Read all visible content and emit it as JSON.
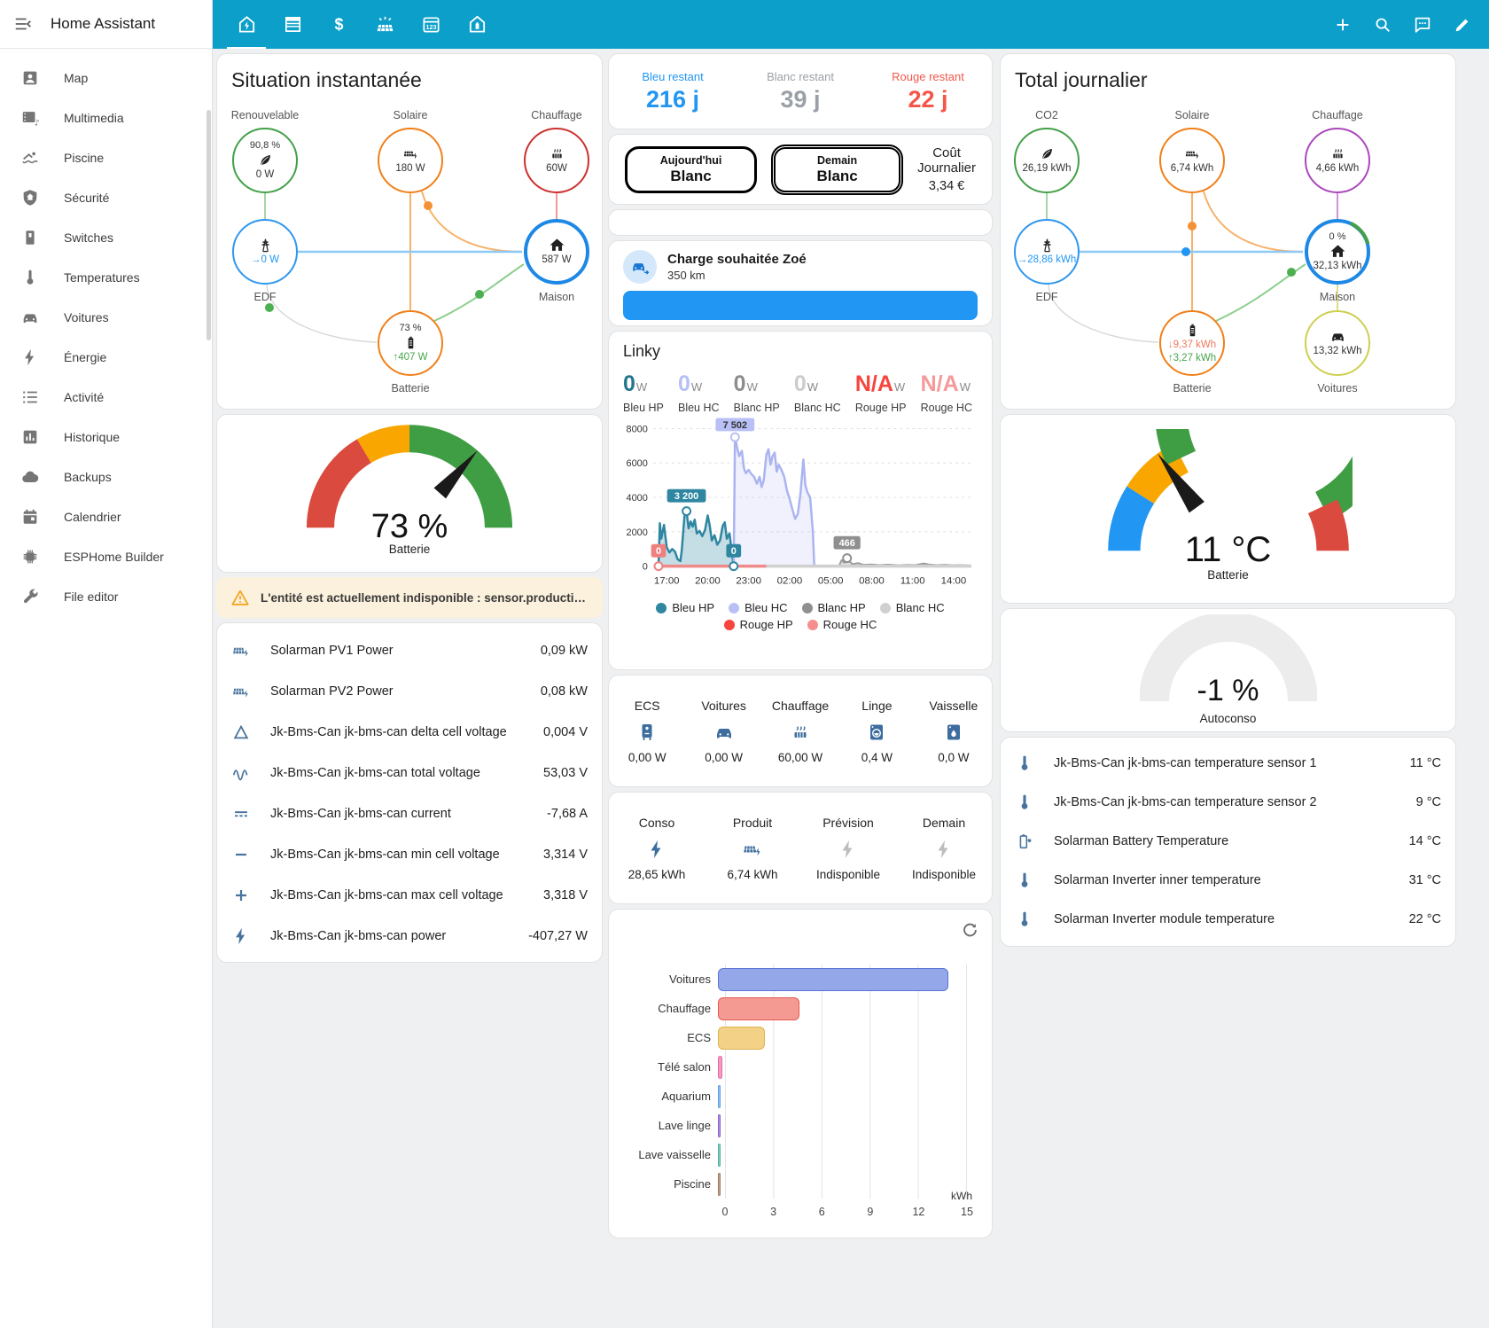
{
  "app": {
    "title": "Home Assistant"
  },
  "colors": {
    "appbar": "#0b9fc9",
    "accent_blue": "#2196f3",
    "tempo_red": "#f4564a",
    "tempo_gray": "#9aa0a6",
    "warning_bg": "#fbf1dc"
  },
  "topbar": {
    "tabs": [
      "home-lightning",
      "blinds",
      "currency-usd",
      "solar-power",
      "calendar-123",
      "home-battery"
    ],
    "actions": [
      "plus",
      "magnify",
      "chat",
      "pencil"
    ]
  },
  "sidebar": {
    "items": [
      {
        "label": "Map",
        "icon": "account-box"
      },
      {
        "label": "Multimedia",
        "icon": "multimedia"
      },
      {
        "label": "Piscine",
        "icon": "pool"
      },
      {
        "label": "Sécurité",
        "icon": "shield-home"
      },
      {
        "label": "Switches",
        "icon": "light-switch"
      },
      {
        "label": "Temperatures",
        "icon": "thermometer"
      },
      {
        "label": "Voitures",
        "icon": "car"
      },
      {
        "label": "Énergie",
        "icon": "flash"
      },
      {
        "label": "Activité",
        "icon": "list-status"
      },
      {
        "label": "Historique",
        "icon": "chart-box"
      },
      {
        "label": "Backups",
        "icon": "cloud"
      },
      {
        "label": "Calendrier",
        "icon": "calendar"
      },
      {
        "label": "ESPHome Builder",
        "icon": "chip"
      },
      {
        "label": "File editor",
        "icon": "wrench"
      }
    ]
  },
  "instant": {
    "title": "Situation instantanée",
    "nodes": {
      "renouvelable": {
        "label": "Renouvelable",
        "top": "90,8 %",
        "value": "0 W"
      },
      "solaire": {
        "label": "Solaire",
        "value": "180 W"
      },
      "chauffage": {
        "label": "Chauffage",
        "value": "60W"
      },
      "edf": {
        "label": "EDF",
        "value": "0 W"
      },
      "maison": {
        "label": "Maison",
        "value": "587 W"
      },
      "batterie": {
        "label": "Batterie",
        "top": "73 %",
        "value": "407 W"
      }
    },
    "gauge": {
      "value": "73 %",
      "label": "Batterie"
    },
    "warning": "L'entité est actuellement indisponible : sensor.production_fore...",
    "sensors": [
      {
        "name": "Solarman PV1 Power",
        "value": "0,09 kW",
        "icon": "solar-panel"
      },
      {
        "name": "Solarman PV2 Power",
        "value": "0,08 kW",
        "icon": "solar-panel"
      },
      {
        "name": "Jk-Bms-Can jk-bms-can delta cell voltage",
        "value": "0,004 V",
        "icon": "delta"
      },
      {
        "name": "Jk-Bms-Can jk-bms-can total voltage",
        "value": "53,03 V",
        "icon": "sine-wave"
      },
      {
        "name": "Jk-Bms-Can jk-bms-can current",
        "value": "-7,68 A",
        "icon": "current-dc"
      },
      {
        "name": "Jk-Bms-Can jk-bms-can min cell voltage",
        "value": "3,314 V",
        "icon": "minus"
      },
      {
        "name": "Jk-Bms-Can jk-bms-can max cell voltage",
        "value": "3,318 V",
        "icon": "plus-math"
      },
      {
        "name": "Jk-Bms-Can jk-bms-can power",
        "value": "-407,27 W",
        "icon": "flash"
      }
    ]
  },
  "tempo": {
    "cards": [
      {
        "label": "Bleu restant",
        "value": "216 j",
        "color": "#2196f3"
      },
      {
        "label": "Blanc restant",
        "value": "39 j",
        "color": "#9aa0a6"
      },
      {
        "label": "Rouge restant",
        "value": "22 j",
        "color": "#f4564a"
      }
    ],
    "today_label": "Aujourd'hui",
    "today_value": "Blanc",
    "tomorrow_label": "Demain",
    "tomorrow_value": "Blanc",
    "cost_label": "Coût Journalier",
    "cost_value": "3,34 €"
  },
  "charge": {
    "title": "Charge souhaitée Zoé",
    "subtitle": "350 km"
  },
  "linky": {
    "title": "Linky",
    "stats": [
      {
        "value": "0",
        "unit": "W",
        "label": "Bleu HP",
        "color": "#26758f"
      },
      {
        "value": "0",
        "unit": "W",
        "label": "Bleu HC",
        "color": "#b7c0f5"
      },
      {
        "value": "0",
        "unit": "W",
        "label": "Blanc HP",
        "color": "#8c8c8c"
      },
      {
        "value": "0",
        "unit": "W",
        "label": "Blanc HC",
        "color": "#cccccc"
      },
      {
        "value": "N/A",
        "unit": "W",
        "label": "Rouge HP",
        "color": "#f6453c"
      },
      {
        "value": "N/A",
        "unit": "W",
        "label": "Rouge HC",
        "color": "#f59a9a"
      }
    ]
  },
  "appliances": [
    {
      "label": "ECS",
      "value": "0,00 W",
      "icon": "water-heater"
    },
    {
      "label": "Voitures",
      "value": "0,00 W",
      "icon": "car"
    },
    {
      "label": "Chauffage",
      "value": "60,00 W",
      "icon": "radiator"
    },
    {
      "label": "Linge",
      "value": "0,4 W",
      "icon": "washer"
    },
    {
      "label": "Vaisselle",
      "value": "0,0 W",
      "icon": "dishwasher"
    }
  ],
  "energy_summary": [
    {
      "label": "Conso",
      "value": "28,65 kWh",
      "icon": "flash"
    },
    {
      "label": "Produit",
      "value": "6,74 kWh",
      "icon": "solar-panel"
    },
    {
      "label": "Prévision",
      "value": "Indisponible",
      "icon": "flash-gray"
    },
    {
      "label": "Demain",
      "value": "Indisponible",
      "icon": "flash-gray"
    }
  ],
  "daily": {
    "title": "Total journalier",
    "nodes": {
      "co2": {
        "label": "CO2",
        "value": "26,19 kWh"
      },
      "solaire": {
        "label": "Solaire",
        "value": "6,74 kWh"
      },
      "chauffage": {
        "label": "Chauffage",
        "value": "4,66 kWh"
      },
      "edf": {
        "label": "EDF",
        "value": "28,86 kWh"
      },
      "maison": {
        "label": "Maison",
        "top": "0 %",
        "value": "32,13 kWh"
      },
      "batterie": {
        "label": "Batterie",
        "down": "9,37 kWh",
        "up": "3,27 kWh"
      },
      "voitures": {
        "label": "Voitures",
        "value": "13,32 kWh"
      }
    },
    "gauge_temp": {
      "value": "11 °C",
      "label": "Batterie"
    },
    "gauge_auto": {
      "value": "-1 %",
      "label": "Autoconso"
    },
    "temps": [
      {
        "name": "Jk-Bms-Can jk-bms-can temperature sensor 1",
        "value": "11 °C",
        "icon": "thermometer"
      },
      {
        "name": "Jk-Bms-Can jk-bms-can temperature sensor 2",
        "value": "9 °C",
        "icon": "thermometer"
      },
      {
        "name": "Solarman Battery Temperature",
        "value": "14 °C",
        "icon": "battery-heart"
      },
      {
        "name": "Solarman Inverter inner temperature",
        "value": "31 °C",
        "icon": "thermometer"
      },
      {
        "name": "Solarman Inverter module temperature",
        "value": "22 °C",
        "icon": "thermometer"
      }
    ]
  },
  "gauges": {
    "battery_pct": {
      "needle": 0.73,
      "thick": 26,
      "segments": [
        {
          "from": 0,
          "to": 0.33,
          "color": "#da4a3e"
        },
        {
          "from": 0.33,
          "to": 0.5,
          "color": "#f9a600"
        },
        {
          "from": 0.5,
          "to": 1,
          "color": "#3f9e44"
        }
      ]
    },
    "battery_temp": {
      "needle": 0.3,
      "thick": 26,
      "segments": [
        {
          "from": 0,
          "to": 0.18,
          "color": "#2196f3"
        },
        {
          "from": 0.18,
          "to": 0.35,
          "color": "#f9a600"
        },
        {
          "from": 0.35,
          "to": 0.86,
          "color": "#3f9e44"
        },
        {
          "from": 0.86,
          "to": 1,
          "color": "#da4a3e"
        }
      ]
    },
    "autoconso": {
      "needle": null,
      "thick": 34,
      "segments": [
        {
          "from": 0,
          "to": 1,
          "color": "#ececec"
        }
      ]
    }
  },
  "chart_data": [
    {
      "type": "area",
      "title": "Linky",
      "x_range": [
        0,
        23.5
      ],
      "x_ticks": [
        "17:00",
        "20:00",
        "23:00",
        "02:00",
        "05:00",
        "08:00",
        "11:00",
        "14:00"
      ],
      "x_tick_pos": [
        1,
        4,
        7,
        10,
        13,
        16,
        19,
        22
      ],
      "ylim": [
        0,
        8000
      ],
      "y_ticks": [
        0,
        2000,
        4000,
        6000,
        8000
      ],
      "series": [
        {
          "name": "Bleu HP",
          "color": "#2e86a1",
          "fill": "rgba(46,134,161,0.28)",
          "width": 2.5,
          "points": [
            [
              0.4,
              0
            ],
            [
              0.5,
              2500
            ],
            [
              0.6,
              1600
            ],
            [
              0.8,
              2400
            ],
            [
              1.0,
              1100
            ],
            [
              1.2,
              800
            ],
            [
              1.4,
              1000
            ],
            [
              1.6,
              850
            ],
            [
              1.8,
              400
            ],
            [
              2.0,
              300
            ],
            [
              2.1,
              900
            ],
            [
              2.3,
              2900
            ],
            [
              2.45,
              3200
            ],
            [
              2.6,
              2200
            ],
            [
              2.75,
              2600
            ],
            [
              2.9,
              2300
            ],
            [
              3.05,
              2700
            ],
            [
              3.2,
              1900
            ],
            [
              3.4,
              2050
            ],
            [
              3.6,
              1750
            ],
            [
              3.8,
              2100
            ],
            [
              4.0,
              2950
            ],
            [
              4.15,
              2350
            ],
            [
              4.3,
              1500
            ],
            [
              4.5,
              1800
            ],
            [
              4.7,
              1250
            ],
            [
              4.9,
              1500
            ],
            [
              5.1,
              2350
            ],
            [
              5.25,
              2550
            ],
            [
              5.4,
              1600
            ],
            [
              5.6,
              1900
            ],
            [
              5.75,
              900
            ],
            [
              5.9,
              0
            ]
          ]
        },
        {
          "name": "Bleu HC",
          "color": "#aab4f0",
          "fill": "rgba(170,180,240,0.18)",
          "width": 2.5,
          "points": [
            [
              5.9,
              0
            ],
            [
              6.0,
              7502
            ],
            [
              6.15,
              6900
            ],
            [
              6.3,
              6400
            ],
            [
              6.5,
              6700
            ],
            [
              6.65,
              5700
            ],
            [
              6.8,
              5400
            ],
            [
              7.0,
              5600
            ],
            [
              7.2,
              5350
            ],
            [
              7.4,
              5200
            ],
            [
              7.6,
              4800
            ],
            [
              7.8,
              5200
            ],
            [
              7.95,
              4600
            ],
            [
              8.1,
              5000
            ],
            [
              8.3,
              6500
            ],
            [
              8.45,
              6800
            ],
            [
              8.6,
              5900
            ],
            [
              8.75,
              6400
            ],
            [
              8.9,
              6600
            ],
            [
              9.05,
              5500
            ],
            [
              9.2,
              5900
            ],
            [
              9.4,
              5600
            ],
            [
              9.6,
              5200
            ],
            [
              9.8,
              4400
            ],
            [
              10.0,
              3900
            ],
            [
              10.2,
              3300
            ],
            [
              10.4,
              2750
            ],
            [
              10.6,
              3050
            ],
            [
              10.8,
              4300
            ],
            [
              11.0,
              6200
            ],
            [
              11.15,
              4700
            ],
            [
              11.3,
              4300
            ],
            [
              11.5,
              4000
            ],
            [
              11.7,
              2000
            ],
            [
              11.8,
              0
            ]
          ]
        },
        {
          "name": "Blanc HP",
          "color": "#9c9c9c",
          "fill": "rgba(150,150,150,0.3)",
          "width": 2,
          "points": [
            [
              13.6,
              0
            ],
            [
              13.8,
              350
            ],
            [
              14.0,
              200
            ],
            [
              14.2,
              466
            ],
            [
              14.4,
              280
            ],
            [
              14.6,
              120
            ],
            [
              15.0,
              180
            ],
            [
              15.4,
              80
            ],
            [
              16.0,
              100
            ],
            [
              16.6,
              60
            ],
            [
              17.2,
              90
            ],
            [
              18.0,
              50
            ],
            [
              18.6,
              70
            ],
            [
              19.2,
              60
            ],
            [
              19.8,
              160
            ],
            [
              20.2,
              90
            ],
            [
              20.8,
              60
            ],
            [
              21.4,
              80
            ],
            [
              22.0,
              50
            ],
            [
              22.6,
              60
            ],
            [
              23.2,
              40
            ]
          ]
        },
        {
          "name": "Rouge HP",
          "color": "#f08a8a",
          "fill": "none",
          "width": 3.5,
          "points": [
            [
              0.4,
              0
            ],
            [
              8.3,
              0
            ]
          ]
        },
        {
          "name": "Blanc HC",
          "color": "#d0d0d0",
          "fill": "none",
          "width": 3.5,
          "points": [
            [
              8.3,
              0
            ],
            [
              23.3,
              0
            ]
          ]
        }
      ],
      "point_labels": [
        {
          "x": 6.0,
          "y": 7502,
          "text": "7 502",
          "bg": "#b9c0f5",
          "fg": "#333333"
        },
        {
          "x": 2.45,
          "y": 3200,
          "text": "3 200",
          "bg": "#2e86a1",
          "fg": "#ffffff"
        },
        {
          "x": 14.2,
          "y": 466,
          "text": "466",
          "bg": "#8f8f8f",
          "fg": "#ffffff"
        },
        {
          "x": 0.4,
          "y": 0,
          "text": "0",
          "bg": "#f08080",
          "fg": "#ffffff"
        },
        {
          "x": 5.9,
          "y": 0,
          "text": "0",
          "bg": "#2e86a1",
          "fg": "#ffffff"
        }
      ],
      "legend": [
        {
          "label": "Bleu HP",
          "color": "#2e86a1"
        },
        {
          "label": "Bleu HC",
          "color": "#b9c0f5"
        },
        {
          "label": "Blanc HP",
          "color": "#8f8f8f"
        },
        {
          "label": "Blanc HC",
          "color": "#d0d0d0"
        },
        {
          "label": "Rouge HP",
          "color": "#f6453c"
        },
        {
          "label": "Rouge HC",
          "color": "#f58f8f"
        }
      ]
    },
    {
      "type": "bar",
      "orientation": "horizontal",
      "categories": [
        "Voitures",
        "Chauffage",
        "ECS",
        "Télé salon",
        "Aquarium",
        "Lave linge",
        "Lave vaisselle",
        "Piscine"
      ],
      "values": [
        13.9,
        4.9,
        2.85,
        0.25,
        0.1,
        0.1,
        0.06,
        0.08
      ],
      "colors": [
        "#94a7e8",
        "#f49a92",
        "#f3d186",
        "#f29ac0",
        "#a3c4ef",
        "#b598e2",
        "#8ed0c5",
        "#c8a691"
      ],
      "borders": [
        "#5c74d6",
        "#e35b51",
        "#dfb24e",
        "#e46ba8",
        "#5f9de0",
        "#8a5fd0",
        "#4fae9f",
        "#a07a5f"
      ],
      "xlabel": "kWh",
      "x_ticks": [
        0,
        3,
        6,
        9,
        12,
        15
      ],
      "xlim": [
        0,
        15
      ]
    }
  ]
}
